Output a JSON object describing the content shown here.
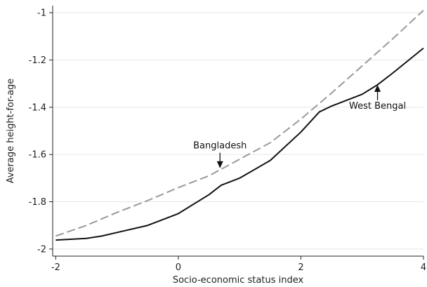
{
  "title": "",
  "chart_data": {
    "type": "line",
    "xlabel": "Socio-economic status index",
    "ylabel": "Average height-for-age",
    "xlim": [
      -2.05,
      4.0
    ],
    "ylim": [
      -2.03,
      -0.97
    ],
    "x_ticks": [
      -2,
      0,
      2,
      4
    ],
    "y_ticks": [
      -2,
      -1.8,
      -1.6,
      -1.4,
      -1.2,
      -1
    ],
    "grid": "horizontal",
    "series": [
      {
        "name": "Bangladesh",
        "style": "dashed",
        "color": "#9a9a9a",
        "x": [
          -2,
          -1.5,
          -1,
          -0.5,
          0,
          0.5,
          1,
          1.5,
          2,
          2.5,
          3,
          3.5,
          4
        ],
        "y": [
          -1.945,
          -1.9,
          -1.845,
          -1.795,
          -1.74,
          -1.69,
          -1.62,
          -1.55,
          -1.45,
          -1.34,
          -1.225,
          -1.11,
          -0.99
        ]
      },
      {
        "name": "West Bengal",
        "style": "solid",
        "color": "#111111",
        "x": [
          -2,
          -1.5,
          -1.25,
          -1,
          -0.5,
          0,
          0.5,
          0.7,
          1,
          1.5,
          2,
          2.3,
          2.5,
          3,
          3.25,
          3.5,
          4
        ],
        "y": [
          -1.962,
          -1.955,
          -1.945,
          -1.93,
          -1.9,
          -1.85,
          -1.77,
          -1.73,
          -1.7,
          -1.625,
          -1.505,
          -1.42,
          -1.395,
          -1.345,
          -1.305,
          -1.255,
          -1.15
        ]
      }
    ],
    "annotations": [
      {
        "text": "Bangladesh",
        "arrow_to": [
          0.68,
          -1.658
        ],
        "arrow_direction": "down"
      },
      {
        "text": "West Bengal",
        "arrow_to": [
          3.25,
          -1.305
        ],
        "arrow_direction": "up"
      }
    ]
  }
}
